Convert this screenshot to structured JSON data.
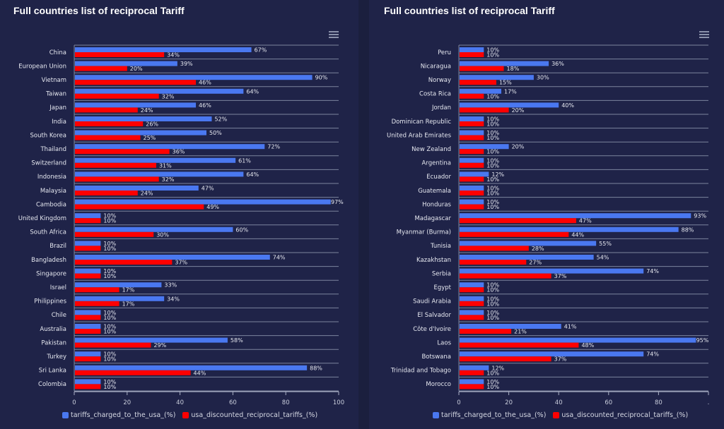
{
  "colors": {
    "series1": "#4a78f0",
    "series2": "#ff0000",
    "text": "#e6e8f0",
    "grid": "#7d849e",
    "background": "#1f2348"
  },
  "chart_data": [
    {
      "type": "bar",
      "orientation": "horizontal",
      "title": "Full countries list of reciprocal Tariff",
      "xlabel": "",
      "ylabel": "",
      "xlim": [
        0,
        100
      ],
      "xticks": [
        "0",
        "20",
        "40",
        "60",
        "80",
        "100"
      ],
      "legend_position": "bottom",
      "categories": [
        "China",
        "European Union",
        "Vietnam",
        "Taiwan",
        "Japan",
        "India",
        "South Korea",
        "Thailand",
        "Switzerland",
        "Indonesia",
        "Malaysia",
        "Cambodia",
        "United Kingdom",
        "South Africa",
        "Brazil",
        "Bangladesh",
        "Singapore",
        "Israel",
        "Philippines",
        "Chile",
        "Australia",
        "Pakistan",
        "Turkey",
        "Sri Lanka",
        "Colombia"
      ],
      "series": [
        {
          "name": "tariffs_charged_to_the_usa_(%)",
          "values": [
            67,
            39,
            90,
            64,
            46,
            52,
            50,
            72,
            61,
            64,
            47,
            97,
            10,
            60,
            10,
            74,
            10,
            33,
            34,
            10,
            10,
            58,
            10,
            88,
            10
          ]
        },
        {
          "name": "usa_discounted_reciprocal_tariffs_(%)",
          "values": [
            34,
            20,
            46,
            32,
            24,
            26,
            25,
            36,
            31,
            32,
            24,
            49,
            10,
            30,
            10,
            37,
            10,
            17,
            17,
            10,
            10,
            29,
            10,
            44,
            10
          ]
        }
      ]
    },
    {
      "type": "bar",
      "orientation": "horizontal",
      "title": "Full countries list of reciprocal Tariff",
      "xlabel": "",
      "ylabel": "",
      "xlim": [
        0,
        100
      ],
      "xticks": [
        "0",
        "20",
        "40",
        "60",
        "80",
        "."
      ],
      "legend_position": "bottom",
      "categories": [
        "Peru",
        "Nicaragua",
        "Norway",
        "Costa Rica",
        "Jordan",
        "Dominican Republic",
        "United Arab Emirates",
        "New Zealand",
        "Argentina",
        "Ecuador",
        "Guatemala",
        "Honduras",
        "Madagascar",
        "Myanmar (Burma)",
        "Tunisia",
        "Kazakhstan",
        "Serbia",
        "Egypt",
        "Saudi Arabia",
        "El Salvador",
        "Côte d'Ivoire",
        "Laos",
        "Botswana",
        "Trinidad and Tobago",
        "Morocco"
      ],
      "series": [
        {
          "name": "tariffs_charged_to_the_usa_(%)",
          "values": [
            10,
            36,
            30,
            17,
            40,
            10,
            10,
            20,
            10,
            12,
            10,
            10,
            93,
            88,
            55,
            54,
            74,
            10,
            10,
            10,
            41,
            95,
            74,
            12,
            10
          ]
        },
        {
          "name": "usa_discounted_reciprocal_tariffs_(%)",
          "values": [
            10,
            18,
            15,
            10,
            20,
            10,
            10,
            10,
            10,
            10,
            10,
            10,
            47,
            44,
            28,
            27,
            37,
            10,
            10,
            10,
            21,
            48,
            37,
            10,
            10
          ]
        }
      ]
    }
  ]
}
